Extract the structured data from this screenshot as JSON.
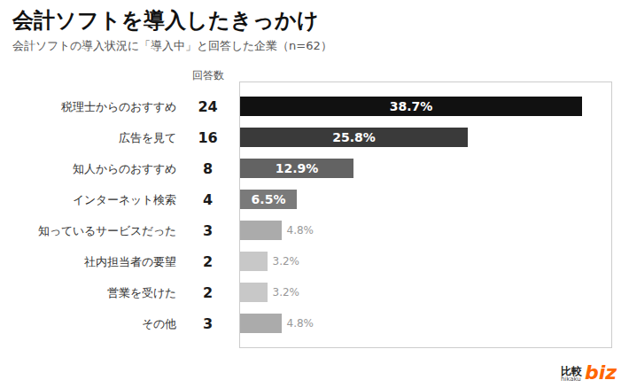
{
  "chart_data": {
    "type": "bar",
    "orientation": "horizontal",
    "title": "会計ソフトを導入したきっかけ",
    "subtitle": "会計ソフトの導入状況に「導入中」と回答した企業（n=62）",
    "categories": [
      "税理士からのおすすめ",
      "広告を見て",
      "知人からのおすすめ",
      "インターネット検索",
      "知っているサービスだった",
      "社内担当者の要望",
      "営業を受けた",
      "その他"
    ],
    "values": [
      38.7,
      25.8,
      12.9,
      6.5,
      4.8,
      3.2,
      3.2,
      4.8
    ],
    "value_labels": [
      "38.7%",
      "25.8%",
      "12.9%",
      "6.5%",
      "4.8%",
      "3.2%",
      "3.2%",
      "4.8%"
    ],
    "data_labels": true,
    "colors": [
      "#111111",
      "#3a3a3a",
      "#636363",
      "#7a7a7a",
      "#ababab",
      "#c8c8c8",
      "#c8c8c8",
      "#ababab"
    ],
    "counts_label": "回答数",
    "counts": [
      24,
      16,
      8,
      4,
      3,
      2,
      2,
      3
    ],
    "xlim": [
      0,
      42
    ],
    "tick_labels": false,
    "grid": false,
    "annotations": [
      "比較",
      "hikaku",
      "biz"
    ]
  }
}
